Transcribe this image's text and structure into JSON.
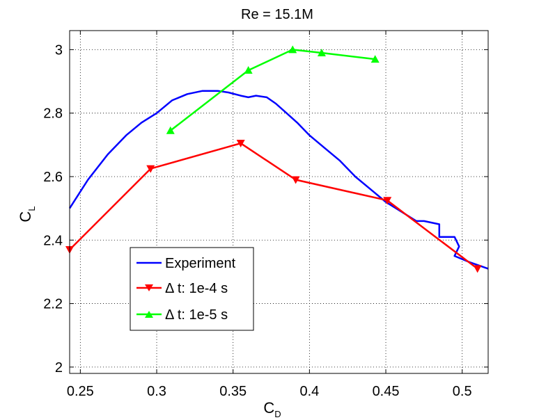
{
  "chart_data": {
    "type": "line",
    "title": "Re = 15.1M",
    "xlabel": {
      "main": "C",
      "sub": "D"
    },
    "ylabel": {
      "main": "C",
      "sub": "L"
    },
    "xlim": [
      0.243,
      0.517
    ],
    "ylim": [
      1.98,
      3.06
    ],
    "xticks": [
      0.25,
      0.3,
      0.35,
      0.4,
      0.45,
      0.5
    ],
    "xtick_labels": [
      "0.25",
      "0.3",
      "0.35",
      "0.4",
      "0.45",
      "0.5"
    ],
    "yticks": [
      2,
      2.2,
      2.4,
      2.6,
      2.8,
      3
    ],
    "ytick_labels": [
      "2",
      "2.2",
      "2.4",
      "2.6",
      "2.8",
      "3"
    ],
    "grid": true,
    "legend_location": "lower-left",
    "series": [
      {
        "name": "Experiment",
        "legend_label": "Experiment",
        "color": "#0000ff",
        "marker": "none",
        "x": [
          0.243,
          0.255,
          0.268,
          0.28,
          0.29,
          0.3,
          0.31,
          0.32,
          0.33,
          0.34,
          0.347,
          0.355,
          0.36,
          0.365,
          0.372,
          0.378,
          0.385,
          0.392,
          0.4,
          0.41,
          0.42,
          0.43,
          0.44,
          0.45,
          0.46,
          0.47,
          0.475,
          0.485,
          0.485,
          0.495,
          0.498,
          0.495,
          0.505,
          0.517
        ],
        "y": [
          2.5,
          2.59,
          2.67,
          2.73,
          2.77,
          2.8,
          2.84,
          2.86,
          2.87,
          2.87,
          2.865,
          2.855,
          2.85,
          2.855,
          2.85,
          2.83,
          2.8,
          2.77,
          2.73,
          2.69,
          2.65,
          2.6,
          2.56,
          2.52,
          2.49,
          2.46,
          2.46,
          2.45,
          2.41,
          2.41,
          2.38,
          2.35,
          2.33,
          2.31
        ]
      },
      {
        "name": "dt_1e-4",
        "legend_label": "Δ t: 1e-4 s",
        "color": "#ff0000",
        "marker": "triangle-down",
        "x": [
          0.243,
          0.296,
          0.355,
          0.391,
          0.451,
          0.51
        ],
        "y": [
          2.37,
          2.625,
          2.705,
          2.59,
          2.525,
          2.31
        ]
      },
      {
        "name": "dt_1e-5",
        "legend_label": "Δ t: 1e-5 s",
        "color": "#00ff00",
        "marker": "triangle-up",
        "x": [
          0.309,
          0.36,
          0.389,
          0.408,
          0.443
        ],
        "y": [
          2.745,
          2.935,
          3.0,
          2.99,
          2.97
        ]
      }
    ]
  }
}
